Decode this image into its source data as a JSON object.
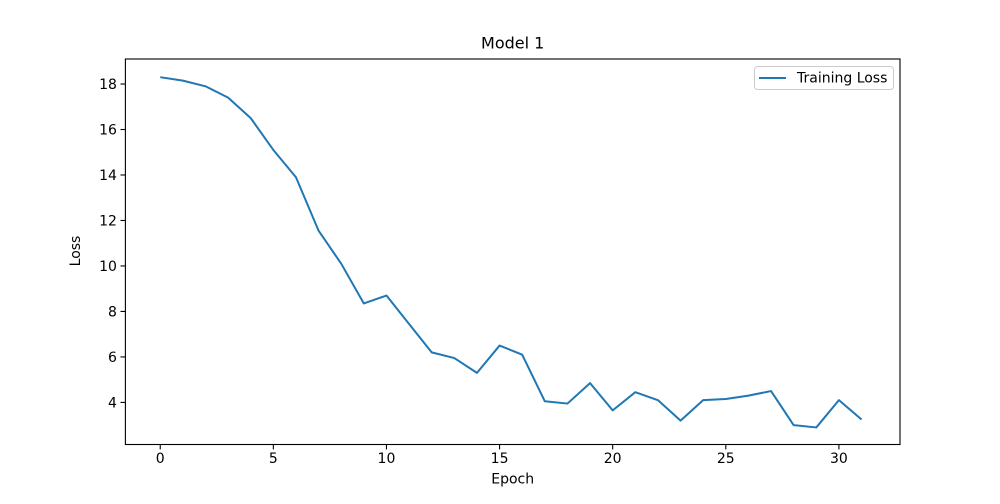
{
  "chart_data": {
    "type": "line",
    "title": "Model 1",
    "xlabel": "Epoch",
    "ylabel": "Loss",
    "grid": false,
    "legend": {
      "position": "upper right",
      "entries": [
        "Training Loss"
      ]
    },
    "x": [
      0,
      1,
      2,
      3,
      4,
      5,
      6,
      7,
      8,
      9,
      10,
      11,
      12,
      13,
      14,
      15,
      16,
      17,
      18,
      19,
      20,
      21,
      22,
      23,
      24,
      25,
      26,
      27,
      28,
      29,
      30,
      31
    ],
    "series": [
      {
        "name": "Training Loss",
        "color": "#1f77b4",
        "values": [
          18.3,
          18.15,
          17.9,
          17.4,
          16.5,
          15.1,
          13.9,
          11.55,
          10.1,
          8.35,
          8.7,
          7.45,
          6.2,
          5.95,
          5.3,
          6.5,
          6.1,
          4.05,
          3.95,
          4.85,
          3.65,
          4.45,
          4.1,
          3.2,
          4.1,
          4.15,
          4.3,
          4.5,
          3.0,
          2.9,
          4.1,
          3.25
        ]
      }
    ],
    "xlim": [
      -1.54,
      32.7
    ],
    "ylim": [
      2.15,
      19.1
    ],
    "xticks": [
      0,
      5,
      10,
      15,
      20,
      25,
      30
    ],
    "yticks": [
      4,
      6,
      8,
      10,
      12,
      14,
      16,
      18
    ]
  },
  "colors": {
    "background": "#ffffff",
    "axis": "#000000",
    "tick_label": "#000000",
    "legend_border": "#cccccc",
    "legend_background": "#ffffff"
  }
}
